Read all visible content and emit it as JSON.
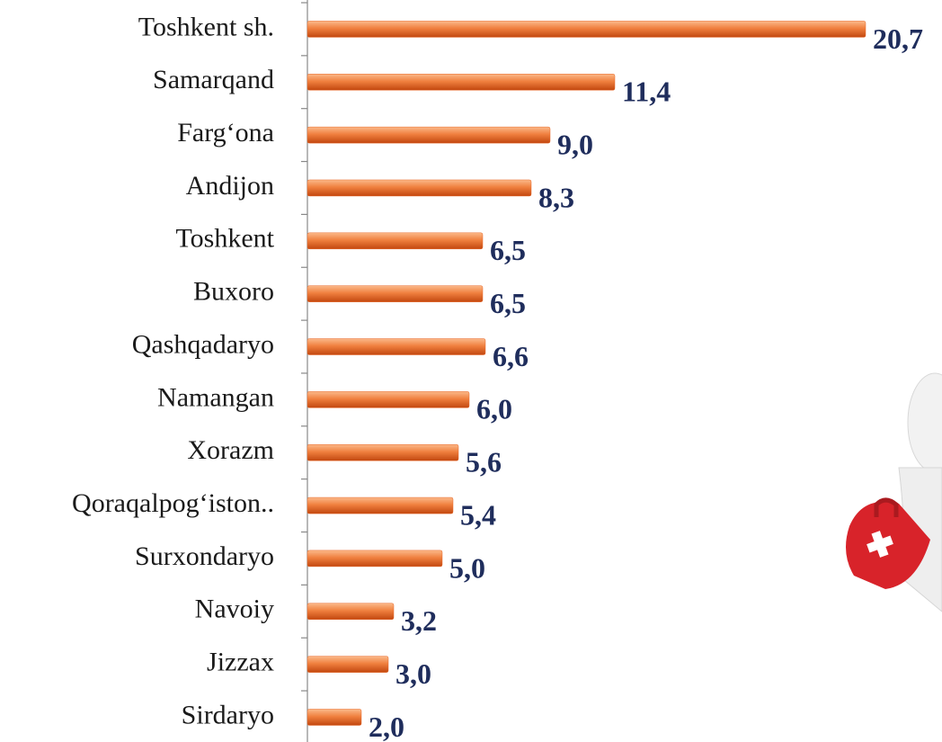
{
  "chart_data": {
    "type": "barh",
    "categories": [
      "Toshkent sh.",
      "Samarqand",
      "Farg‘ona",
      "Andijon",
      "Toshkent",
      "Buxoro",
      "Qashqadaryo",
      "Namangan",
      "Xorazm",
      "Qoraqalpog‘iston..",
      "Surxondaryo",
      "Navoiy",
      "Jizzax",
      "Sirdaryo"
    ],
    "values": [
      20.7,
      11.4,
      9.0,
      8.3,
      6.5,
      6.5,
      6.6,
      6.0,
      5.6,
      5.4,
      5.0,
      3.2,
      3.0,
      2.0
    ],
    "value_labels": [
      "20,7",
      "11,4",
      "9,0",
      "8,3",
      "6,5",
      "6,5",
      "6,6",
      "6,0",
      "5,6",
      "5,4",
      "5,0",
      "3,2",
      "3,0",
      "2,0"
    ],
    "color": "#e8692a",
    "xlim": [
      0,
      21
    ]
  }
}
